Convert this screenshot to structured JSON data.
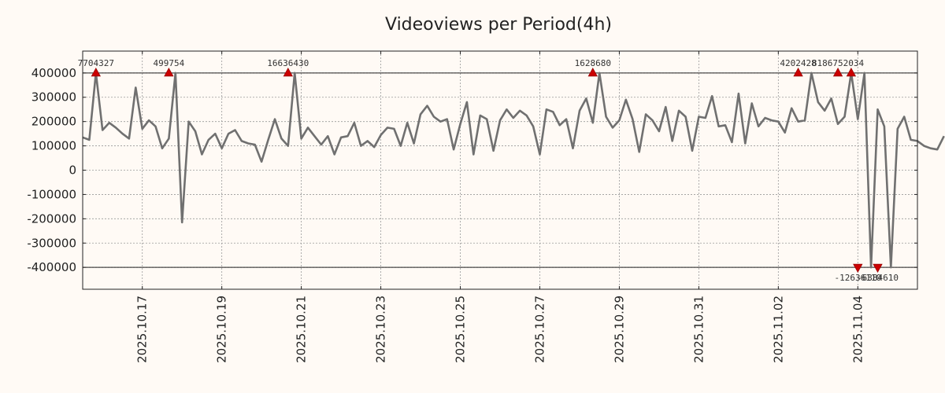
{
  "chart_data": {
    "type": "line",
    "title": "Videoviews per Period(4h)",
    "xlabel": "",
    "ylabel": "",
    "ylim": [
      -490000,
      490000
    ],
    "xlim": [
      "2025-10-15T12:00",
      "2025-11-05T12:00"
    ],
    "grid": true,
    "clip_lines": [
      400000,
      -400000
    ],
    "y_ticks": [
      {
        "v": 400000,
        "label": "400000"
      },
      {
        "v": 300000,
        "label": "300000"
      },
      {
        "v": 200000,
        "label": "200000"
      },
      {
        "v": 100000,
        "label": "100000"
      },
      {
        "v": 0,
        "label": "0"
      },
      {
        "v": -100000,
        "label": "-100000"
      },
      {
        "v": -200000,
        "label": "-200000"
      },
      {
        "v": -300000,
        "label": "-300000"
      },
      {
        "v": -400000,
        "label": "-400000"
      }
    ],
    "x_ticks": [
      {
        "t": "2025-10-17T00:00",
        "label": "2025.10.17"
      },
      {
        "t": "2025-10-19T00:00",
        "label": "2025.10.19"
      },
      {
        "t": "2025-10-21T00:00",
        "label": "2025.10.21"
      },
      {
        "t": "2025-10-23T00:00",
        "label": "2025.10.23"
      },
      {
        "t": "2025-10-25T00:00",
        "label": "2025.10.25"
      },
      {
        "t": "2025-10-27T00:00",
        "label": "2025.10.27"
      },
      {
        "t": "2025-10-29T00:00",
        "label": "2025.10.29"
      },
      {
        "t": "2025-10-31T00:00",
        "label": "2025.10.31"
      },
      {
        "t": "2025-11-02T00:00",
        "label": "2025.11.02"
      },
      {
        "t": "2025-11-04T00:00",
        "label": "2025.11.04"
      }
    ],
    "series": [
      {
        "name": "Videoviews",
        "color": "#707070",
        "start": "2025-10-15T12:00",
        "step_hours": 4,
        "values": [
          135000,
          125000,
          400000,
          165000,
          195000,
          175000,
          150000,
          130000,
          340000,
          170000,
          205000,
          180000,
          90000,
          130000,
          400000,
          -215000,
          200000,
          160000,
          65000,
          125000,
          150000,
          90000,
          150000,
          165000,
          120000,
          110000,
          105000,
          35000,
          125000,
          210000,
          130000,
          100000,
          400000,
          130000,
          175000,
          140000,
          105000,
          140000,
          65000,
          135000,
          140000,
          195000,
          100000,
          120000,
          95000,
          145000,
          175000,
          170000,
          100000,
          195000,
          110000,
          230000,
          265000,
          220000,
          200000,
          210000,
          85000,
          190000,
          280000,
          65000,
          225000,
          210000,
          80000,
          205000,
          250000,
          215000,
          245000,
          225000,
          180000,
          65000,
          250000,
          240000,
          185000,
          210000,
          90000,
          245000,
          295000,
          195000,
          400000,
          220000,
          175000,
          205000,
          290000,
          210000,
          75000,
          230000,
          205000,
          160000,
          260000,
          120000,
          245000,
          220000,
          80000,
          220000,
          215000,
          305000,
          180000,
          185000,
          115000,
          315000,
          110000,
          275000,
          180000,
          215000,
          205000,
          200000,
          155000,
          255000,
          200000,
          205000,
          400000,
          280000,
          245000,
          295000,
          190000,
          220000,
          400000,
          210000,
          400000,
          -400000,
          250000,
          180000,
          -400000,
          170000,
          220000,
          125000,
          120000,
          100000,
          90000,
          85000,
          140000
        ]
      }
    ],
    "annotations": [
      {
        "t": "2025-10-15T20:00",
        "v": 400000,
        "label": "7704327",
        "dir": "up"
      },
      {
        "t": "2025-10-17T16:00",
        "v": 400000,
        "label": "499754",
        "dir": "up"
      },
      {
        "t": "2025-10-20T16:00",
        "v": 400000,
        "label": "16636430",
        "dir": "up"
      },
      {
        "t": "2025-10-28T08:00",
        "v": 400000,
        "label": "1628680",
        "dir": "up"
      },
      {
        "t": "2025-11-02T12:00",
        "v": 400000,
        "label": "4202428",
        "dir": "up"
      },
      {
        "t": "2025-11-03T12:00",
        "v": 400000,
        "label": "8186752034",
        "dir": "up"
      },
      {
        "t": "2025-11-03T20:00",
        "v": 400000,
        "label": "",
        "dir": "up"
      },
      {
        "t": "2025-11-04T00:00",
        "v": -400000,
        "label": "-12636110",
        "dir": "down"
      },
      {
        "t": "2025-11-04T12:00",
        "v": -400000,
        "label": "-6384610",
        "dir": "down"
      }
    ]
  }
}
